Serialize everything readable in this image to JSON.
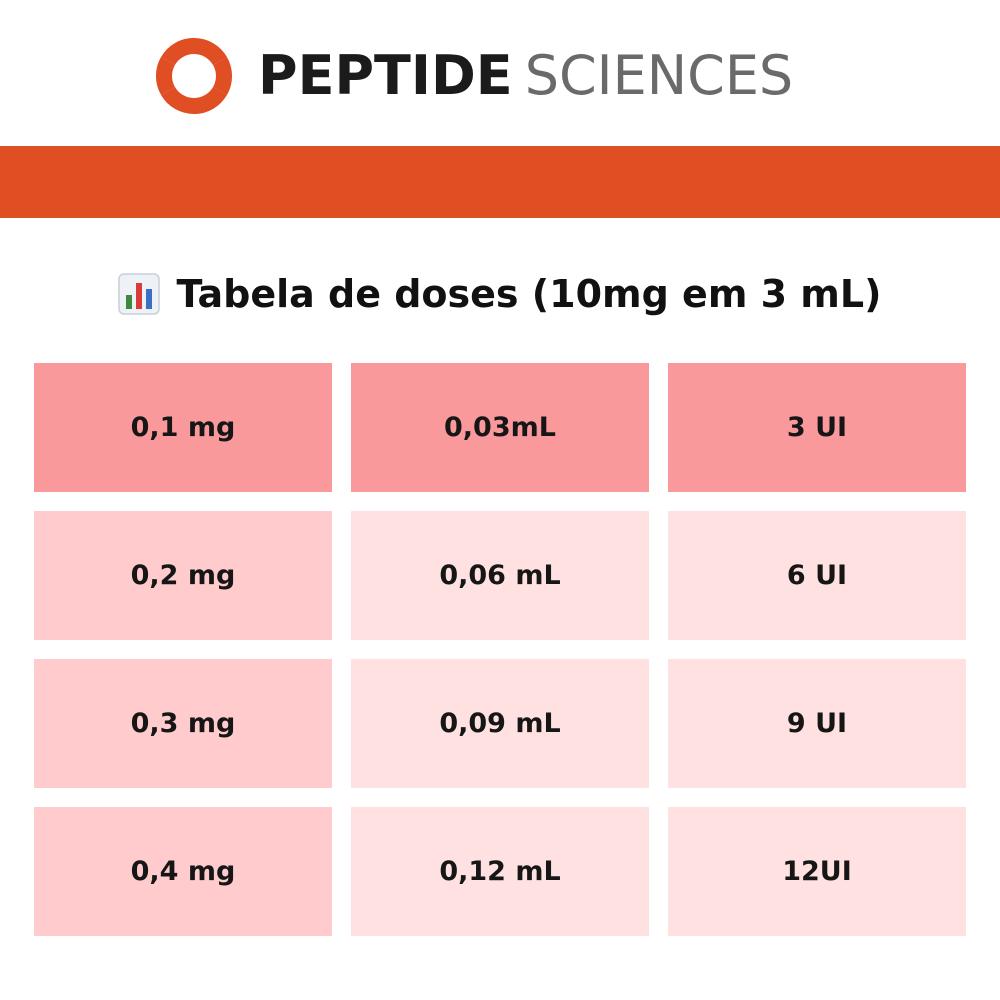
{
  "brand": {
    "word1": "PEPTIDE",
    "word2": "SCIENCES",
    "logo_icon": "swirl-logo-icon",
    "colors": {
      "accent": "#e04e24",
      "word1": "#1b1b1b",
      "word2": "#6a6a6a"
    }
  },
  "title": {
    "icon": "bar-chart-icon",
    "text": "Tabela de doses (10mg em 3 mL)"
  },
  "table": {
    "colors": {
      "first_row": "#fa999b",
      "first_column": "#ffcbcc",
      "other_cells": "#ffe1e1"
    },
    "rows": [
      {
        "dose": "0,1 mg",
        "volume": "0,03mL",
        "units": "3 UI"
      },
      {
        "dose": "0,2 mg",
        "volume": "0,06 mL",
        "units": "6 UI"
      },
      {
        "dose": "0,3 mg",
        "volume": "0,09 mL",
        "units": "9 UI"
      },
      {
        "dose": "0,4 mg",
        "volume": "0,12 mL",
        "units": "12UI"
      }
    ]
  }
}
